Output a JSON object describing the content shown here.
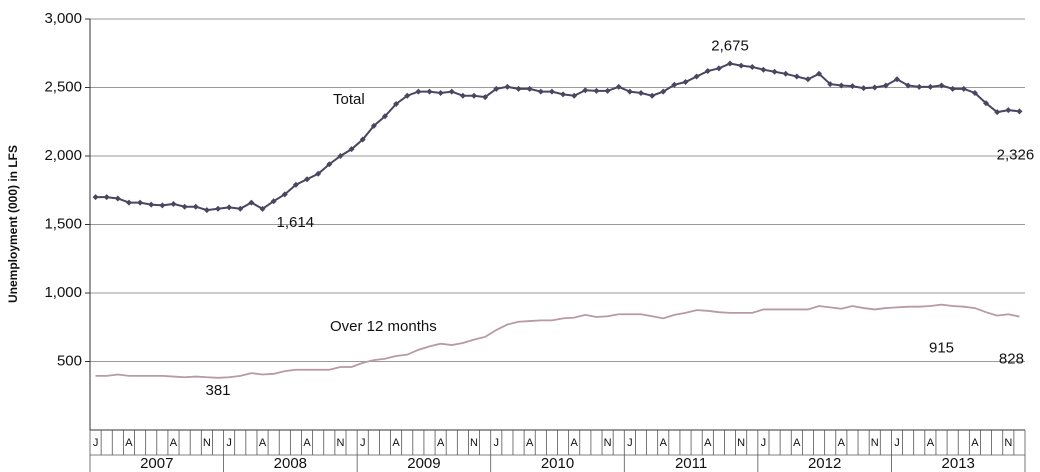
{
  "chart_data": {
    "type": "line",
    "ylabel": "Unemployment (000) in LFS",
    "categories": [
      "J",
      null,
      null,
      "A",
      null,
      null,
      null,
      "A",
      null,
      null,
      "N",
      null,
      "J",
      null,
      null,
      "A",
      null,
      null,
      null,
      "A",
      null,
      null,
      "N",
      null,
      "J",
      null,
      null,
      "A",
      null,
      null,
      null,
      "A",
      null,
      null,
      "N",
      null,
      "J",
      null,
      null,
      "A",
      null,
      null,
      null,
      "A",
      null,
      null,
      "N",
      null,
      "J",
      null,
      null,
      "A",
      null,
      null,
      null,
      "A",
      null,
      null,
      "N",
      null,
      "J",
      null,
      null,
      "A",
      null,
      null,
      null,
      "A",
      null,
      null,
      "N",
      null,
      "J",
      null,
      null,
      "A",
      null,
      null,
      null,
      "A",
      null,
      null,
      "N",
      null
    ],
    "years": [
      "2007",
      "2008",
      "2009",
      "2010",
      "2011",
      "2012",
      "2013"
    ],
    "series": [
      {
        "name": "Total",
        "color": "#4a4560",
        "values": [
          1700,
          1700,
          1690,
          1660,
          1660,
          1645,
          1640,
          1650,
          1630,
          1630,
          1605,
          1615,
          1625,
          1615,
          1660,
          1614,
          1670,
          1720,
          1790,
          1830,
          1870,
          1940,
          2000,
          2050,
          2120,
          2220,
          2290,
          2380,
          2440,
          2470,
          2470,
          2460,
          2470,
          2440,
          2440,
          2430,
          2490,
          2505,
          2490,
          2490,
          2470,
          2470,
          2450,
          2440,
          2480,
          2475,
          2475,
          2505,
          2470,
          2460,
          2440,
          2470,
          2520,
          2540,
          2580,
          2620,
          2640,
          2675,
          2660,
          2650,
          2630,
          2615,
          2600,
          2580,
          2560,
          2600,
          2525,
          2515,
          2510,
          2495,
          2500,
          2515,
          2560,
          2515,
          2505,
          2505,
          2515,
          2490,
          2490,
          2460,
          2385,
          2320,
          2335,
          2326
        ],
        "value_labels": {
          "15": "1,614",
          "57": "2,675",
          "83": "2,326"
        }
      },
      {
        "name": "Over 12 months",
        "color": "#b89aa0",
        "values": [
          395,
          395,
          405,
          395,
          395,
          395,
          395,
          390,
          385,
          390,
          385,
          381,
          385,
          395,
          415,
          405,
          410,
          430,
          440,
          440,
          440,
          440,
          460,
          460,
          490,
          510,
          520,
          540,
          550,
          585,
          610,
          630,
          620,
          635,
          660,
          680,
          730,
          770,
          790,
          795,
          800,
          800,
          815,
          820,
          840,
          825,
          830,
          845,
          845,
          845,
          830,
          815,
          840,
          855,
          875,
          870,
          860,
          855,
          855,
          855,
          880,
          880,
          880,
          880,
          880,
          905,
          895,
          885,
          905,
          890,
          880,
          890,
          895,
          900,
          900,
          905,
          915,
          905,
          900,
          890,
          860,
          835,
          845,
          828
        ],
        "value_labels": {
          "11": "381",
          "76": "915",
          "83": "828"
        }
      }
    ],
    "ylim": [
      0,
      3000
    ],
    "yticks": [
      500,
      {
        "value": 1000,
        "label": "1,000"
      },
      {
        "value": 1500,
        "label": "1,500"
      },
      {
        "value": 2000,
        "label": "2,000"
      },
      {
        "value": 2500,
        "label": "2,500"
      },
      {
        "value": 3000,
        "label": "3,000"
      }
    ],
    "grid": true
  }
}
